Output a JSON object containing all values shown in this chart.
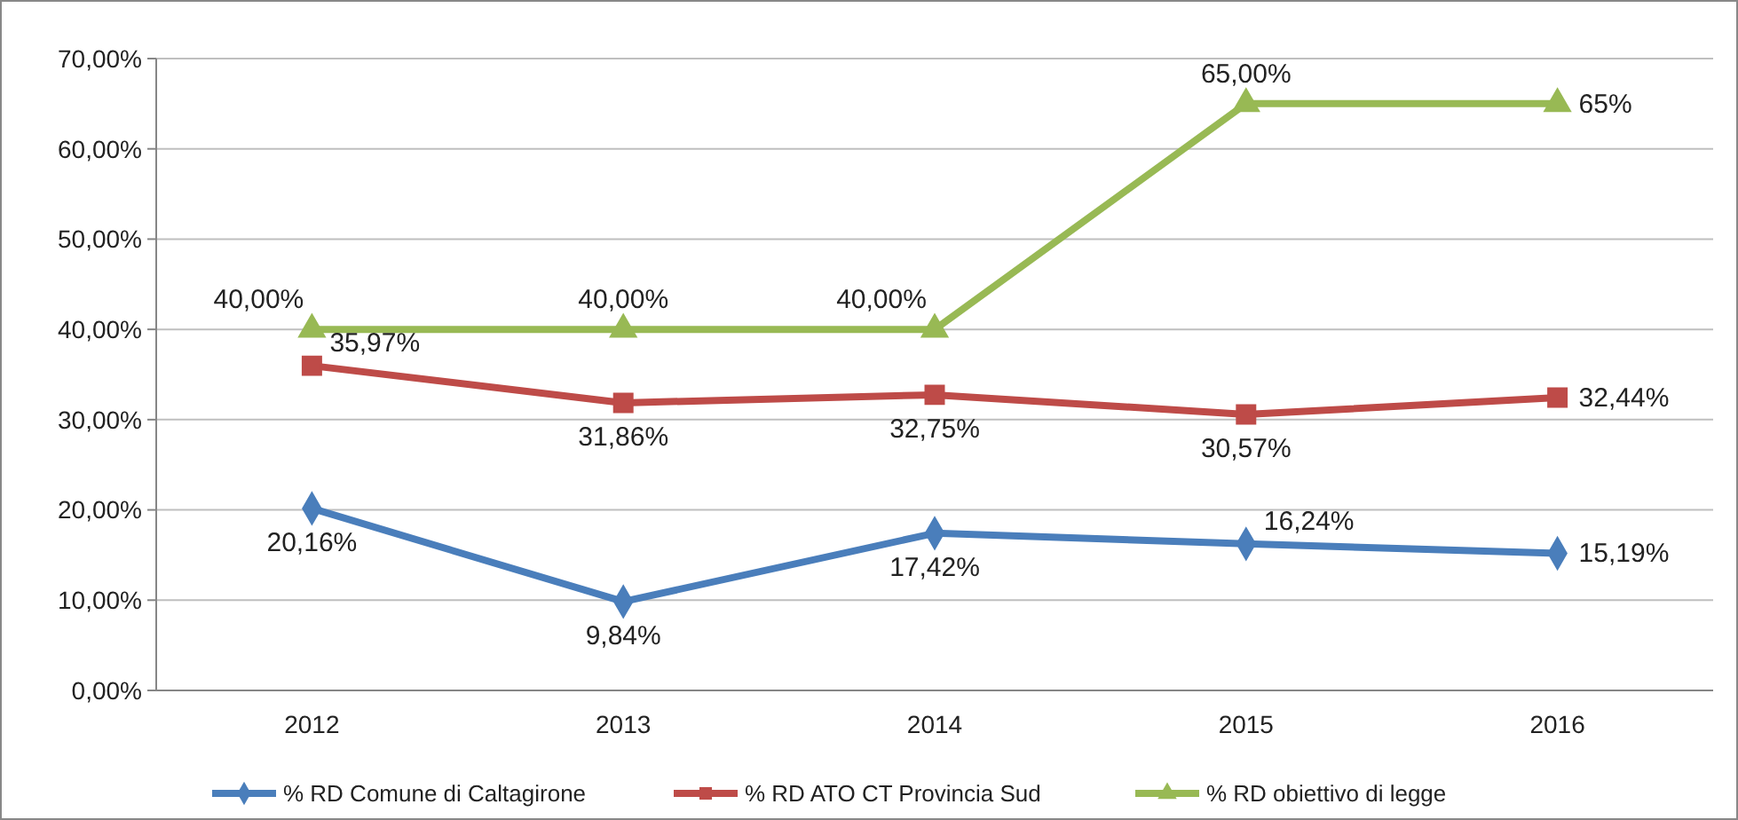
{
  "chart_data": {
    "type": "line",
    "categories": [
      "2012",
      "2013",
      "2014",
      "2015",
      "2016"
    ],
    "ylim": [
      0,
      70
    ],
    "yticks": [
      {
        "value": 0,
        "label": "0,00%"
      },
      {
        "value": 10,
        "label": "10,00%"
      },
      {
        "value": 20,
        "label": "20,00%"
      },
      {
        "value": 30,
        "label": "30,00%"
      },
      {
        "value": 40,
        "label": "40,00%"
      },
      {
        "value": 50,
        "label": "50,00%"
      },
      {
        "value": 60,
        "label": "60,00%"
      },
      {
        "value": 70,
        "label": "70,00%"
      }
    ],
    "grid": "y",
    "legend": "bottom",
    "series": [
      {
        "name": "% RD Comune di Caltagirone",
        "color": "#4a7ebb",
        "marker": "diamond",
        "values": [
          20.16,
          9.84,
          17.42,
          16.24,
          15.19
        ],
        "value_labels": [
          "20,16%",
          "9,84%",
          "17,42%",
          "16,24%",
          "15,19%"
        ]
      },
      {
        "name": "% RD ATO CT Provincia Sud",
        "color": "#be4b48",
        "marker": "square",
        "values": [
          35.97,
          31.86,
          32.75,
          30.57,
          32.44
        ],
        "value_labels": [
          "35,97%",
          "31,86%",
          "32,75%",
          "30,57%",
          "32,44%"
        ]
      },
      {
        "name": "% RD obiettivo di legge",
        "color": "#98b954",
        "marker": "triangle",
        "values": [
          40,
          40,
          40,
          65,
          65
        ],
        "value_labels": [
          "40,00%",
          "40,00%",
          "40,00%",
          "65,00%",
          "65%"
        ]
      }
    ]
  }
}
